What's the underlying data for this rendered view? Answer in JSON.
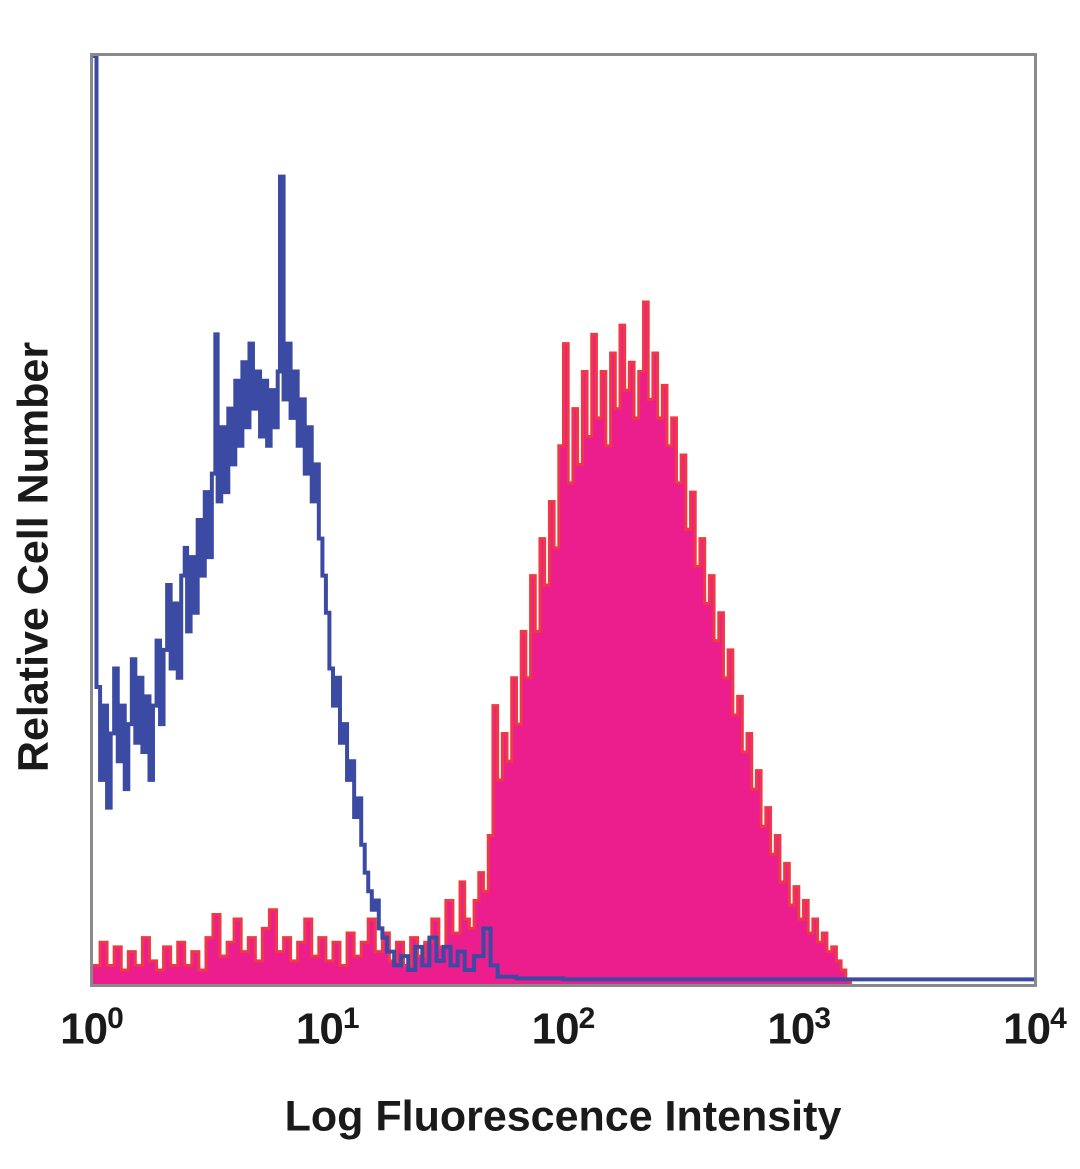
{
  "figure": {
    "xlabel": "Log Fluorescence Intensity",
    "ylabel": "Relative Cell Number",
    "x_ticks": [
      {
        "base": "10",
        "exp": "0",
        "decade": 0
      },
      {
        "base": "10",
        "exp": "1",
        "decade": 1
      },
      {
        "base": "10",
        "exp": "2",
        "decade": 2
      },
      {
        "base": "10",
        "exp": "3",
        "decade": 3
      },
      {
        "base": "10",
        "exp": "4",
        "decade": 4
      }
    ]
  },
  "colors": {
    "frame": "#8a8a8a",
    "text": "#1a1a1a",
    "blue_trace": "#3b4aa2",
    "magenta_fill": "#ec1e8e",
    "red_outline": "#ee3a45",
    "background": "#ffffff"
  },
  "chart_data": {
    "type": "area",
    "subtype": "flow-cytometry-histogram-overlay",
    "title": "",
    "xlabel": "Log Fluorescence Intensity",
    "ylabel": "Relative Cell Number",
    "x_scale": "log10",
    "x_range_decades": [
      0,
      4
    ],
    "x_tick_labels": [
      "10^0",
      "10^1",
      "10^2",
      "10^3",
      "10^4"
    ],
    "y_axis": "relative cell number (unlabeled, 0 to 1 of plot height)",
    "grid": false,
    "legend": "none",
    "series": [
      {
        "name": "filled-magenta-histogram",
        "style": "filled",
        "fill": "#ec1e8e",
        "stroke": "#ee3a45",
        "stroke_width": 3,
        "peak_log10_x": 2.34,
        "points": [
          [
            0.0,
            0.02
          ],
          [
            0.03,
            0.045
          ],
          [
            0.06,
            0.02
          ],
          [
            0.09,
            0.04
          ],
          [
            0.12,
            0.015
          ],
          [
            0.15,
            0.035
          ],
          [
            0.18,
            0.02
          ],
          [
            0.21,
            0.05
          ],
          [
            0.24,
            0.025
          ],
          [
            0.27,
            0.015
          ],
          [
            0.3,
            0.04
          ],
          [
            0.33,
            0.02
          ],
          [
            0.36,
            0.045
          ],
          [
            0.39,
            0.02
          ],
          [
            0.42,
            0.035
          ],
          [
            0.45,
            0.015
          ],
          [
            0.48,
            0.05
          ],
          [
            0.51,
            0.075
          ],
          [
            0.54,
            0.03
          ],
          [
            0.57,
            0.045
          ],
          [
            0.6,
            0.07
          ],
          [
            0.63,
            0.035
          ],
          [
            0.66,
            0.05
          ],
          [
            0.69,
            0.025
          ],
          [
            0.72,
            0.06
          ],
          [
            0.75,
            0.08
          ],
          [
            0.78,
            0.035
          ],
          [
            0.81,
            0.05
          ],
          [
            0.84,
            0.025
          ],
          [
            0.87,
            0.045
          ],
          [
            0.9,
            0.07
          ],
          [
            0.93,
            0.03
          ],
          [
            0.96,
            0.05
          ],
          [
            0.99,
            0.025
          ],
          [
            1.02,
            0.045
          ],
          [
            1.05,
            0.02
          ],
          [
            1.08,
            0.055
          ],
          [
            1.11,
            0.03
          ],
          [
            1.14,
            0.045
          ],
          [
            1.17,
            0.07
          ],
          [
            1.2,
            0.035
          ],
          [
            1.23,
            0.055
          ],
          [
            1.26,
            0.025
          ],
          [
            1.29,
            0.045
          ],
          [
            1.32,
            0.02
          ],
          [
            1.35,
            0.05
          ],
          [
            1.38,
            0.03
          ],
          [
            1.41,
            0.045
          ],
          [
            1.44,
            0.07
          ],
          [
            1.47,
            0.04
          ],
          [
            1.5,
            0.09
          ],
          [
            1.53,
            0.055
          ],
          [
            1.56,
            0.11
          ],
          [
            1.58,
            0.07
          ],
          [
            1.6,
            0.06
          ],
          [
            1.62,
            0.09
          ],
          [
            1.64,
            0.12
          ],
          [
            1.66,
            0.1
          ],
          [
            1.68,
            0.16
          ],
          [
            1.7,
            0.3
          ],
          [
            1.72,
            0.22
          ],
          [
            1.74,
            0.27
          ],
          [
            1.76,
            0.24
          ],
          [
            1.78,
            0.33
          ],
          [
            1.8,
            0.28
          ],
          [
            1.82,
            0.38
          ],
          [
            1.84,
            0.33
          ],
          [
            1.86,
            0.44
          ],
          [
            1.88,
            0.38
          ],
          [
            1.9,
            0.48
          ],
          [
            1.92,
            0.43
          ],
          [
            1.94,
            0.52
          ],
          [
            1.96,
            0.47
          ],
          [
            1.98,
            0.58
          ],
          [
            2.0,
            0.69
          ],
          [
            2.02,
            0.54
          ],
          [
            2.04,
            0.62
          ],
          [
            2.06,
            0.56
          ],
          [
            2.08,
            0.66
          ],
          [
            2.1,
            0.59
          ],
          [
            2.12,
            0.7
          ],
          [
            2.14,
            0.61
          ],
          [
            2.16,
            0.66
          ],
          [
            2.18,
            0.58
          ],
          [
            2.2,
            0.68
          ],
          [
            2.22,
            0.62
          ],
          [
            2.24,
            0.71
          ],
          [
            2.26,
            0.64
          ],
          [
            2.28,
            0.67
          ],
          [
            2.3,
            0.61
          ],
          [
            2.32,
            0.66
          ],
          [
            2.34,
            0.735
          ],
          [
            2.36,
            0.63
          ],
          [
            2.38,
            0.68
          ],
          [
            2.4,
            0.61
          ],
          [
            2.42,
            0.645
          ],
          [
            2.44,
            0.58
          ],
          [
            2.46,
            0.61
          ],
          [
            2.48,
            0.54
          ],
          [
            2.5,
            0.57
          ],
          [
            2.52,
            0.49
          ],
          [
            2.54,
            0.53
          ],
          [
            2.56,
            0.45
          ],
          [
            2.58,
            0.48
          ],
          [
            2.6,
            0.41
          ],
          [
            2.62,
            0.44
          ],
          [
            2.64,
            0.37
          ],
          [
            2.66,
            0.4
          ],
          [
            2.68,
            0.33
          ],
          [
            2.7,
            0.36
          ],
          [
            2.72,
            0.29
          ],
          [
            2.74,
            0.31
          ],
          [
            2.76,
            0.25
          ],
          [
            2.78,
            0.27
          ],
          [
            2.8,
            0.21
          ],
          [
            2.82,
            0.23
          ],
          [
            2.84,
            0.17
          ],
          [
            2.86,
            0.19
          ],
          [
            2.88,
            0.14
          ],
          [
            2.9,
            0.16
          ],
          [
            2.92,
            0.11
          ],
          [
            2.94,
            0.13
          ],
          [
            2.96,
            0.085
          ],
          [
            2.98,
            0.105
          ],
          [
            3.0,
            0.07
          ],
          [
            3.02,
            0.09
          ],
          [
            3.04,
            0.055
          ],
          [
            3.06,
            0.07
          ],
          [
            3.08,
            0.045
          ],
          [
            3.1,
            0.055
          ],
          [
            3.12,
            0.035
          ],
          [
            3.14,
            0.04
          ],
          [
            3.16,
            0.025
          ],
          [
            3.18,
            0.015
          ],
          [
            3.2,
            0.005
          ],
          [
            3.22,
            0.0
          ]
        ]
      },
      {
        "name": "open-blue-histogram",
        "style": "open",
        "fill": "none",
        "stroke": "#3b4aa2",
        "stroke_width": 4,
        "peak_log10_x": 0.8,
        "points": [
          [
            0.0,
            1.0
          ],
          [
            0.015,
            0.32
          ],
          [
            0.03,
            0.22
          ],
          [
            0.045,
            0.3
          ],
          [
            0.06,
            0.19
          ],
          [
            0.075,
            0.27
          ],
          [
            0.09,
            0.34
          ],
          [
            0.105,
            0.24
          ],
          [
            0.12,
            0.3
          ],
          [
            0.135,
            0.21
          ],
          [
            0.15,
            0.28
          ],
          [
            0.165,
            0.35
          ],
          [
            0.18,
            0.26
          ],
          [
            0.195,
            0.33
          ],
          [
            0.21,
            0.25
          ],
          [
            0.225,
            0.31
          ],
          [
            0.24,
            0.22
          ],
          [
            0.255,
            0.3
          ],
          [
            0.27,
            0.37
          ],
          [
            0.285,
            0.28
          ],
          [
            0.3,
            0.36
          ],
          [
            0.315,
            0.43
          ],
          [
            0.33,
            0.34
          ],
          [
            0.345,
            0.41
          ],
          [
            0.36,
            0.33
          ],
          [
            0.375,
            0.44
          ],
          [
            0.39,
            0.47
          ],
          [
            0.4,
            0.38
          ],
          [
            0.415,
            0.46
          ],
          [
            0.43,
            0.4
          ],
          [
            0.445,
            0.5
          ],
          [
            0.46,
            0.44
          ],
          [
            0.475,
            0.53
          ],
          [
            0.49,
            0.46
          ],
          [
            0.505,
            0.55
          ],
          [
            0.52,
            0.7
          ],
          [
            0.53,
            0.52
          ],
          [
            0.545,
            0.6
          ],
          [
            0.56,
            0.53
          ],
          [
            0.575,
            0.62
          ],
          [
            0.59,
            0.56
          ],
          [
            0.605,
            0.65
          ],
          [
            0.62,
            0.58
          ],
          [
            0.635,
            0.67
          ],
          [
            0.65,
            0.6
          ],
          [
            0.665,
            0.69
          ],
          [
            0.68,
            0.62
          ],
          [
            0.695,
            0.66
          ],
          [
            0.71,
            0.59
          ],
          [
            0.725,
            0.65
          ],
          [
            0.74,
            0.58
          ],
          [
            0.755,
            0.64
          ],
          [
            0.77,
            0.6
          ],
          [
            0.785,
            0.66
          ],
          [
            0.795,
            0.87
          ],
          [
            0.81,
            0.63
          ],
          [
            0.825,
            0.69
          ],
          [
            0.84,
            0.61
          ],
          [
            0.855,
            0.66
          ],
          [
            0.87,
            0.58
          ],
          [
            0.885,
            0.63
          ],
          [
            0.9,
            0.55
          ],
          [
            0.915,
            0.6
          ],
          [
            0.93,
            0.52
          ],
          [
            0.945,
            0.56
          ],
          [
            0.96,
            0.48
          ],
          [
            0.975,
            0.44
          ],
          [
            0.99,
            0.4
          ],
          [
            1.005,
            0.34
          ],
          [
            1.02,
            0.3
          ],
          [
            1.035,
            0.33
          ],
          [
            1.05,
            0.26
          ],
          [
            1.065,
            0.28
          ],
          [
            1.08,
            0.22
          ],
          [
            1.095,
            0.24
          ],
          [
            1.11,
            0.18
          ],
          [
            1.125,
            0.2
          ],
          [
            1.14,
            0.15
          ],
          [
            1.155,
            0.12
          ],
          [
            1.17,
            0.1
          ],
          [
            1.185,
            0.08
          ],
          [
            1.2,
            0.09
          ],
          [
            1.215,
            0.06
          ],
          [
            1.23,
            0.05
          ],
          [
            1.25,
            0.035
          ],
          [
            1.28,
            0.02
          ],
          [
            1.31,
            0.03
          ],
          [
            1.34,
            0.015
          ],
          [
            1.37,
            0.04
          ],
          [
            1.4,
            0.02
          ],
          [
            1.43,
            0.05
          ],
          [
            1.46,
            0.025
          ],
          [
            1.49,
            0.04
          ],
          [
            1.52,
            0.02
          ],
          [
            1.55,
            0.035
          ],
          [
            1.58,
            0.015
          ],
          [
            1.62,
            0.03
          ],
          [
            1.66,
            0.06
          ],
          [
            1.69,
            0.02
          ],
          [
            1.72,
            0.008
          ],
          [
            1.8,
            0.006
          ],
          [
            2.0,
            0.005
          ],
          [
            3.0,
            0.005
          ],
          [
            4.0,
            0.005
          ]
        ]
      }
    ]
  }
}
